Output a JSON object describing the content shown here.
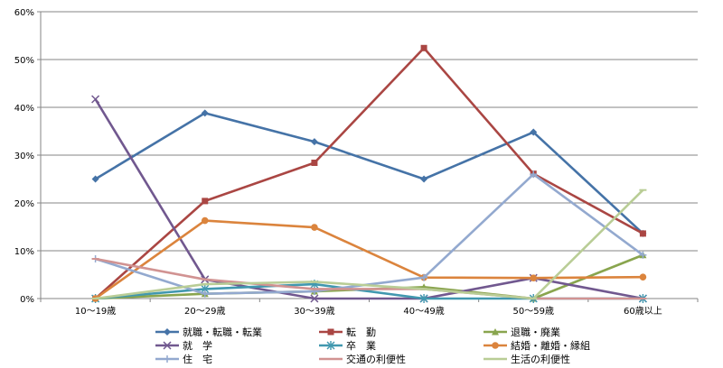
{
  "chart_data": {
    "type": "line",
    "title": "",
    "xlabel": "",
    "ylabel": "",
    "categories": [
      "10～19歳",
      "20～29歳",
      "30～39歳",
      "40～49歳",
      "50～59歳",
      "60歳以上"
    ],
    "ylim": [
      0,
      60
    ],
    "yticks": [
      0,
      10,
      20,
      30,
      40,
      50,
      60
    ],
    "ytick_labels": [
      "0%",
      "10%",
      "20%",
      "30%",
      "40%",
      "50%",
      "60%"
    ],
    "grid": "horizontal",
    "legend_position": "bottom",
    "series": [
      {
        "name": "就職・転職・転業",
        "color": "#4573a7",
        "marker": "diamond",
        "values": [
          25.0,
          38.8,
          32.8,
          25.0,
          34.8,
          13.6
        ]
      },
      {
        "name": "転　勤",
        "color": "#aa4643",
        "marker": "square",
        "values": [
          0.0,
          20.4,
          28.4,
          52.4,
          26.1,
          13.6
        ]
      },
      {
        "name": "退職・廃業",
        "color": "#89a54e",
        "marker": "triangle",
        "values": [
          0.0,
          1.0,
          1.5,
          2.4,
          0.0,
          9.1
        ]
      },
      {
        "name": "就　学",
        "color": "#71588f",
        "marker": "x",
        "values": [
          41.7,
          4.0,
          0.0,
          0.0,
          4.3,
          0.0
        ]
      },
      {
        "name": "卒　業",
        "color": "#4198af",
        "marker": "star",
        "values": [
          0.0,
          2.0,
          3.0,
          0.0,
          0.0,
          0.0
        ]
      },
      {
        "name": "結婚・離婚・縁組",
        "color": "#db843d",
        "marker": "circle",
        "values": [
          0.0,
          16.3,
          14.9,
          4.4,
          4.3,
          4.5
        ]
      },
      {
        "name": "住　宅",
        "color": "#93a9cf",
        "marker": "plus",
        "values": [
          8.3,
          1.0,
          1.5,
          4.4,
          26.0,
          9.1
        ]
      },
      {
        "name": "交通の利便性",
        "color": "#d19392",
        "marker": "dash",
        "values": [
          8.3,
          4.0,
          2.0,
          2.0,
          0.0,
          0.0
        ]
      },
      {
        "name": "生活の利便性",
        "color": "#b9cd96",
        "marker": "dash",
        "values": [
          0.0,
          3.0,
          3.5,
          2.0,
          0.0,
          22.7
        ]
      }
    ]
  }
}
